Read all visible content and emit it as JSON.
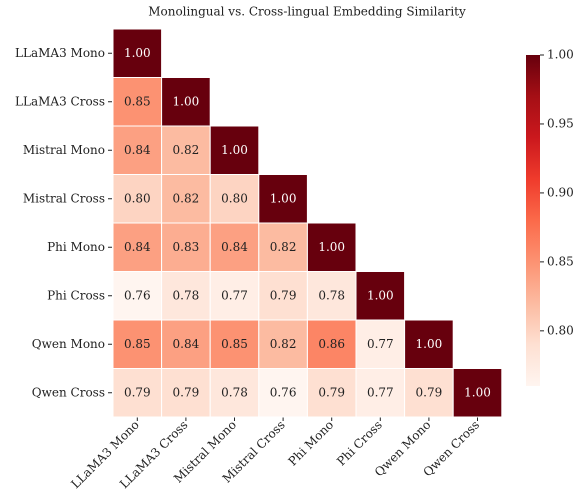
{
  "chart_data": {
    "type": "heatmap",
    "title": "Monolingual vs. Cross-lingual Embedding Similarity",
    "x_categories": [
      "LLaMA3 Mono",
      "LLaMA3 Cross",
      "Mistral Mono",
      "Mistral Cross",
      "Phi Mono",
      "Phi Cross",
      "Qwen Mono",
      "Qwen Cross"
    ],
    "y_categories": [
      "LLaMA3 Mono",
      "LLaMA3 Cross",
      "Mistral Mono",
      "Mistral Cross",
      "Phi Mono",
      "Phi Cross",
      "Qwen Mono",
      "Qwen Cross"
    ],
    "z": [
      [
        1.0,
        null,
        null,
        null,
        null,
        null,
        null,
        null
      ],
      [
        0.85,
        1.0,
        null,
        null,
        null,
        null,
        null,
        null
      ],
      [
        0.84,
        0.82,
        1.0,
        null,
        null,
        null,
        null,
        null
      ],
      [
        0.8,
        0.82,
        0.8,
        1.0,
        null,
        null,
        null,
        null
      ],
      [
        0.84,
        0.83,
        0.84,
        0.82,
        1.0,
        null,
        null,
        null
      ],
      [
        0.76,
        0.78,
        0.77,
        0.79,
        0.78,
        1.0,
        null,
        null
      ],
      [
        0.85,
        0.84,
        0.85,
        0.82,
        0.86,
        0.77,
        1.0,
        null
      ],
      [
        0.79,
        0.79,
        0.78,
        0.76,
        0.79,
        0.77,
        0.79,
        1.0
      ]
    ],
    "value_labels": [
      [
        "1.00",
        null,
        null,
        null,
        null,
        null,
        null,
        null
      ],
      [
        "0.85",
        "1.00",
        null,
        null,
        null,
        null,
        null,
        null
      ],
      [
        "0.84",
        "0.82",
        "1.00",
        null,
        null,
        null,
        null,
        null
      ],
      [
        "0.80",
        "0.82",
        "0.80",
        "1.00",
        null,
        null,
        null,
        null
      ],
      [
        "0.84",
        "0.83",
        "0.84",
        "0.82",
        "1.00",
        null,
        null,
        null
      ],
      [
        "0.76",
        "0.78",
        "0.77",
        "0.79",
        "0.78",
        "1.00",
        null,
        null
      ],
      [
        "0.85",
        "0.84",
        "0.85",
        "0.82",
        "0.86",
        "0.77",
        "1.00",
        null
      ],
      [
        "0.79",
        "0.79",
        "0.78",
        "0.76",
        "0.79",
        "0.77",
        "0.79",
        "1.00"
      ]
    ],
    "zlim": [
      0.76,
      1.0
    ],
    "zticks": [
      {
        "value": 0.8,
        "label": "0.80"
      },
      0.85,
      {
        "value": 0.9,
        "label": "0.90"
      },
      0.95,
      {
        "value": 1.0,
        "label": "1.00"
      }
    ],
    "colormap": "Reds"
  }
}
